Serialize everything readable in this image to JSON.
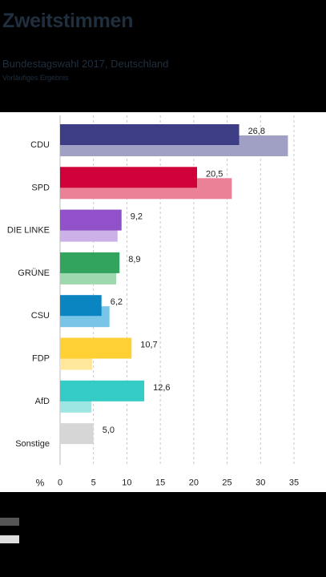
{
  "header": {
    "title": "Zweitstimmen",
    "subtitle": "Bundestagswahl 2017, Deutschland",
    "note": "Vorläufiges Ergebnis"
  },
  "legend": {
    "swatch_2017_color": "#555555",
    "swatch_2013_color": "#dddddd"
  },
  "chart_data": {
    "type": "bar",
    "orientation": "horizontal",
    "categories": [
      "CDU",
      "SPD",
      "DIE LINKE",
      "GRÜNE",
      "CSU",
      "FDP",
      "AfD",
      "Sonstige"
    ],
    "series": [
      {
        "values": [
          26.8,
          20.5,
          9.2,
          8.9,
          6.2,
          10.7,
          12.6,
          5.0
        ],
        "labels": [
          "26,8",
          "20,5",
          "9,2",
          "8,9",
          "6,2",
          "10,7",
          "12,6",
          "5,0"
        ],
        "colors": [
          "#3d3d85",
          "#d0003b",
          "#9151c8",
          "#33a45e",
          "#0a85c2",
          "#ffd034",
          "#36ccc6",
          "#d6d6d6"
        ]
      },
      {
        "values": [
          34.1,
          25.7,
          8.6,
          8.4,
          7.4,
          4.8,
          4.7,
          null
        ],
        "colors": [
          "#a0a0c4",
          "#ea8197",
          "#cbb1e8",
          "#9dd8ae",
          "#79c5e8",
          "#ffe79b",
          "#9ee6e3",
          null
        ]
      }
    ],
    "xlabel": "%",
    "xticks": [
      0,
      5,
      10,
      15,
      20,
      25,
      30,
      35
    ],
    "xlim": [
      0,
      38
    ],
    "grid": true
  }
}
